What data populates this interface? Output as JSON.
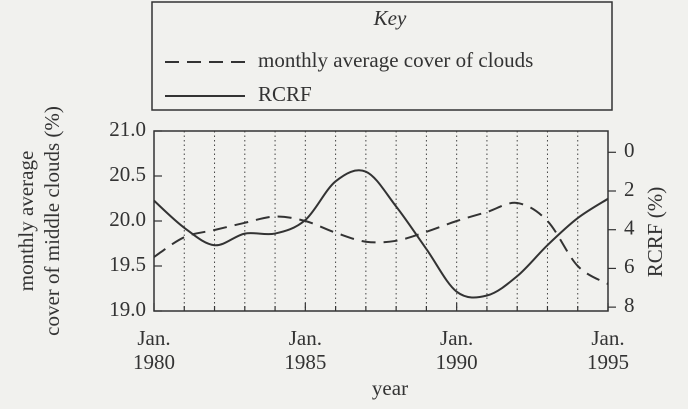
{
  "chart_data": {
    "type": "line",
    "key_title": "Key",
    "xlabel": "year",
    "ylabel": [
      "monthly average",
      "cover of middle clouds (%)"
    ],
    "y2label": "RCRF (%)",
    "x": [
      1980,
      1981,
      1982,
      1983,
      1984,
      1985,
      1986,
      1987,
      1988,
      1989,
      1990,
      1991,
      1992,
      1993,
      1994,
      1995
    ],
    "series": [
      {
        "name": "monthly average cover of clouds",
        "color": "#333333",
        "dash": true,
        "values": [
          19.6,
          19.82,
          19.9,
          19.98,
          20.05,
          20.0,
          19.87,
          19.77,
          19.78,
          19.88,
          20.0,
          20.1,
          20.2,
          20.0,
          19.5,
          19.3
        ]
      },
      {
        "name": "RCRF",
        "color": "#333333",
        "dash": false,
        "axis": "y2",
        "values": [
          2.5,
          3.9,
          4.8,
          4.2,
          4.2,
          3.5,
          1.5,
          1.0,
          2.8,
          5.0,
          7.2,
          7.4,
          6.4,
          4.8,
          3.4,
          2.4
        ]
      }
    ],
    "xlim": [
      1980,
      1995
    ],
    "xticks": [
      {
        "value": 1980,
        "label": "Jan. 1980"
      },
      {
        "value": 1985,
        "label": "Jan. 1985"
      },
      {
        "value": 1990,
        "label": "Jan. 1990"
      },
      {
        "value": 1995,
        "label": "Jan. 1995"
      }
    ],
    "minor_xticks": [
      1981,
      1982,
      1983,
      1984,
      1986,
      1987,
      1988,
      1989,
      1991,
      1992,
      1993,
      1994
    ],
    "ylim": [
      19,
      21
    ],
    "yticks": [
      {
        "value": 19,
        "label": "19.0"
      },
      19.5,
      {
        "value": 20,
        "label": "20.0"
      },
      20.5,
      {
        "value": 21,
        "label": "21.0"
      }
    ],
    "y2lim": [
      8.2,
      -1.1
    ],
    "y2ticks": [
      0,
      2,
      4,
      6,
      8
    ],
    "grid": true
  }
}
